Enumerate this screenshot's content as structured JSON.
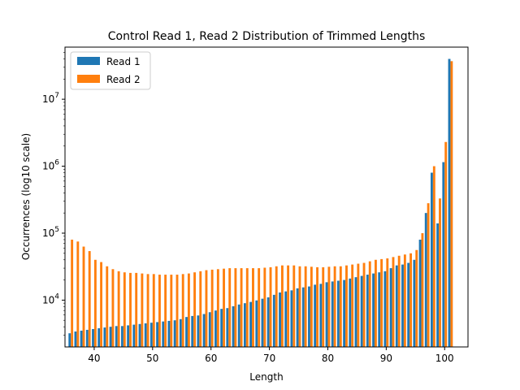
{
  "chart_data": {
    "type": "bar",
    "title": "Control Read 1, Read 2 Distribution of Trimmed Lengths",
    "xlabel": "Length",
    "ylabel": "Occurrences (log10 scale)",
    "yscale": "log",
    "xlim": [
      35,
      104
    ],
    "ylim": [
      2000,
      60000000
    ],
    "xticks": [
      40,
      50,
      60,
      70,
      80,
      90,
      100
    ],
    "yticks": [
      {
        "value": 10000,
        "base": "10",
        "exp": "4"
      },
      {
        "value": 100000,
        "base": "10",
        "exp": "5"
      },
      {
        "value": 1000000,
        "base": "10",
        "exp": "6"
      },
      {
        "value": 10000000,
        "base": "10",
        "exp": "7"
      }
    ],
    "legend_position": "top-left",
    "x": [
      36,
      37,
      38,
      39,
      40,
      41,
      42,
      43,
      44,
      45,
      46,
      47,
      48,
      49,
      50,
      51,
      52,
      53,
      54,
      55,
      56,
      57,
      58,
      59,
      60,
      61,
      62,
      63,
      64,
      65,
      66,
      67,
      68,
      69,
      70,
      71,
      72,
      73,
      74,
      75,
      76,
      77,
      78,
      79,
      80,
      81,
      82,
      83,
      84,
      85,
      86,
      87,
      88,
      89,
      90,
      91,
      92,
      93,
      94,
      95,
      96,
      97,
      98,
      99,
      100,
      101
    ],
    "series": [
      {
        "name": "Read 1",
        "color": "#1f77b4",
        "values": [
          3200,
          3400,
          3500,
          3600,
          3700,
          3800,
          3900,
          4000,
          4100,
          4100,
          4200,
          4300,
          4400,
          4500,
          4600,
          4700,
          4800,
          4900,
          5000,
          5200,
          5600,
          5800,
          5900,
          6200,
          6600,
          7000,
          7400,
          7600,
          8100,
          8600,
          9000,
          9400,
          9900,
          10500,
          11000,
          12000,
          13000,
          13500,
          14000,
          15000,
          15500,
          16000,
          17000,
          17500,
          18500,
          19000,
          19500,
          20000,
          21000,
          22000,
          23000,
          24000,
          25000,
          26000,
          27000,
          30000,
          33000,
          34000,
          36000,
          40000,
          80000,
          200000,
          800000,
          140000,
          1150000,
          40000000
        ]
      },
      {
        "name": "Read 2",
        "color": "#ff7f0e",
        "values": [
          80000,
          75000,
          63000,
          54000,
          40000,
          37000,
          32000,
          29000,
          27000,
          26000,
          25500,
          25500,
          25000,
          24500,
          24500,
          24000,
          24000,
          24000,
          24000,
          24500,
          25000,
          26000,
          27000,
          28000,
          28500,
          29000,
          29500,
          30000,
          30000,
          30000,
          30000,
          30000,
          30000,
          30500,
          31000,
          32000,
          33000,
          33000,
          33000,
          32000,
          32000,
          31500,
          31000,
          31000,
          31500,
          32000,
          32000,
          33000,
          34000,
          35000,
          36000,
          38000,
          40000,
          41000,
          42000,
          44000,
          46000,
          48000,
          50000,
          56000,
          100000,
          280000,
          1000000,
          330000,
          2300000,
          37000000
        ]
      }
    ]
  }
}
